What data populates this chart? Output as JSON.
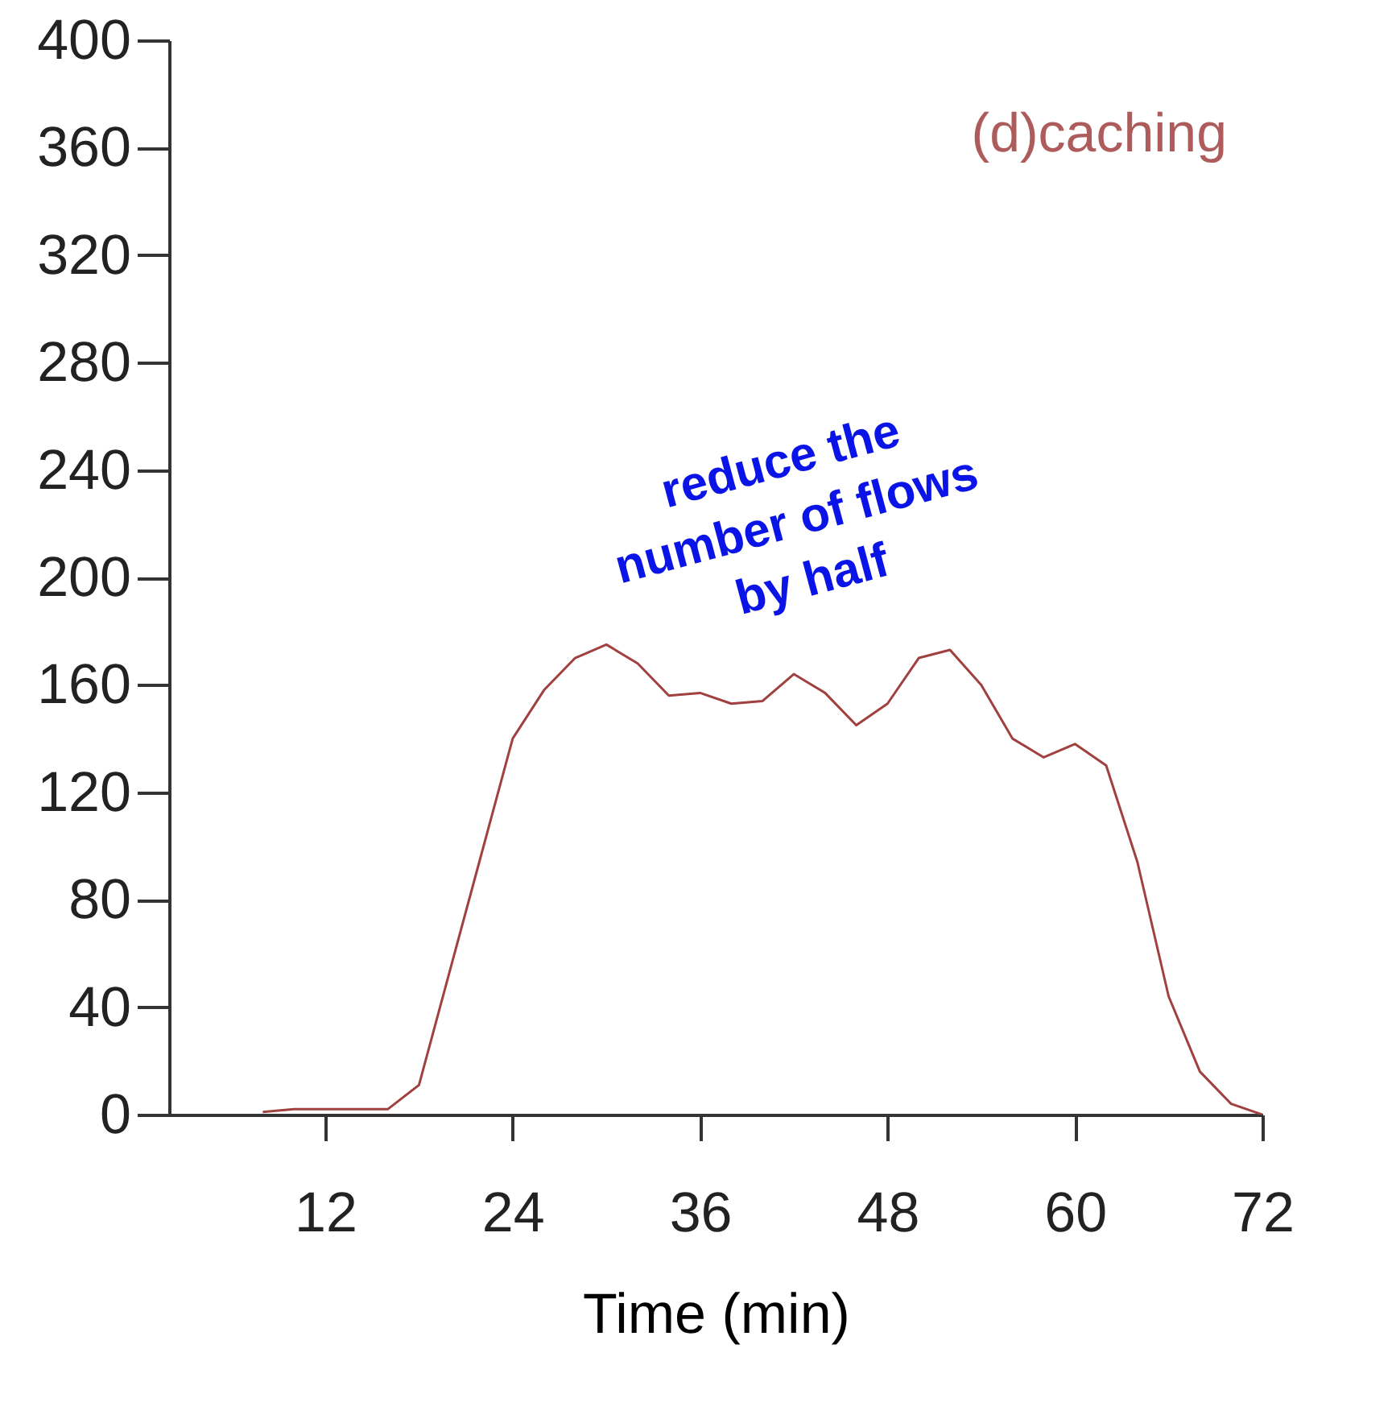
{
  "chart_data": {
    "type": "line",
    "title": "(d)caching",
    "xlabel": "Time (min)",
    "x": [
      8,
      10,
      12,
      14,
      16,
      18,
      20,
      22,
      24,
      26,
      28,
      30,
      32,
      34,
      36,
      38,
      40,
      42,
      44,
      46,
      48,
      50,
      52,
      54,
      56,
      58,
      60,
      62,
      64,
      66,
      68,
      70,
      72
    ],
    "series": [
      {
        "color": "#a0403f",
        "values": [
          1,
          2,
          2,
          2,
          2,
          11,
          54,
          97,
          140,
          158,
          170,
          175,
          168,
          156,
          157,
          153,
          154,
          164,
          157,
          145,
          153,
          170,
          173,
          160,
          140,
          133,
          138,
          130,
          94,
          44,
          16,
          4,
          0
        ]
      }
    ],
    "xlim": [
      2,
      72
    ],
    "xticks": [
      12,
      24,
      36,
      48,
      60,
      72
    ],
    "ylim": [
      0,
      400
    ],
    "yticks": [
      0,
      40,
      80,
      120,
      160,
      200,
      240,
      280,
      320,
      360,
      400
    ],
    "grid": false,
    "marker": "none",
    "line_style": "solid",
    "annotations": [
      "reduce the\nnumber of flows\nby half"
    ]
  }
}
